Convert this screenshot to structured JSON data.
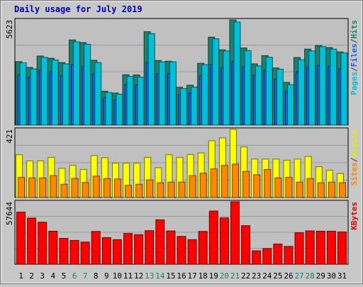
{
  "title": "Daily usage for July 2019",
  "panels": [
    {
      "max_label": "5623",
      "side_labels": [
        {
          "text": "Pages",
          "color": "#00c0d8"
        },
        {
          "text": "/",
          "color": "#404040"
        },
        {
          "text": "Files",
          "color": "#2060f0"
        },
        {
          "text": "/",
          "color": "#404040"
        },
        {
          "text": "Hits",
          "color": "#208070"
        }
      ]
    },
    {
      "max_label": "421",
      "side_labels": [
        {
          "text": "Sites",
          "color": "#ff8800"
        },
        {
          "text": "/",
          "color": "#404040"
        },
        {
          "text": "Visits",
          "color": "#e8e800"
        }
      ]
    },
    {
      "max_label": "57644",
      "side_labels": [
        {
          "text": "KBytes",
          "color": "#e00000"
        }
      ]
    }
  ],
  "weekend_days": [
    6,
    7,
    13,
    14,
    20,
    21,
    27,
    28
  ],
  "chart_data": [
    {
      "type": "bar",
      "categories": [
        "1",
        "2",
        "3",
        "4",
        "5",
        "6",
        "7",
        "8",
        "9",
        "10",
        "11",
        "12",
        "13",
        "14",
        "15",
        "16",
        "17",
        "18",
        "19",
        "20",
        "21",
        "22",
        "23",
        "24",
        "25",
        "26",
        "27",
        "28",
        "29",
        "30",
        "31"
      ],
      "ylim": [
        0,
        5623
      ],
      "series": [
        {
          "name": "Hits",
          "color": "#208070",
          "values": [
            3390,
            3080,
            3690,
            3570,
            3340,
            4550,
            4410,
            3460,
            1810,
            1710,
            2690,
            2680,
            4990,
            3450,
            3410,
            2020,
            2130,
            3300,
            4700,
            4020,
            5620,
            4120,
            3270,
            3710,
            3050,
            2280,
            3610,
            4060,
            4250,
            4140,
            3910
          ]
        },
        {
          "name": "Files",
          "color": "#2060f0",
          "values": [
            2700,
            2550,
            2950,
            2850,
            2650,
            3250,
            3150,
            2750,
            1450,
            1350,
            2150,
            2150,
            3350,
            2750,
            2750,
            1650,
            1700,
            2650,
            3250,
            3050,
            3400,
            3100,
            2650,
            2950,
            2450,
            1800,
            2850,
            3100,
            3200,
            3150,
            3000
          ]
        },
        {
          "name": "Pages",
          "color": "#00c0d8",
          "values": [
            3330,
            3000,
            3620,
            3480,
            3270,
            4450,
            4320,
            3340,
            1740,
            1650,
            2600,
            2560,
            4890,
            3380,
            3380,
            1950,
            2030,
            3230,
            4610,
            3960,
            5510,
            3980,
            3160,
            3630,
            2990,
            2160,
            3490,
            3960,
            4190,
            4060,
            3860
          ]
        }
      ]
    },
    {
      "type": "bar",
      "categories": [
        "1",
        "2",
        "3",
        "4",
        "5",
        "6",
        "7",
        "8",
        "9",
        "10",
        "11",
        "12",
        "13",
        "14",
        "15",
        "16",
        "17",
        "18",
        "19",
        "20",
        "21",
        "22",
        "23",
        "24",
        "25",
        "26",
        "27",
        "28",
        "29",
        "30",
        "31"
      ],
      "ylim": [
        0,
        421
      ],
      "series": [
        {
          "name": "Visits",
          "color": "#ffff00",
          "values": [
            264,
            226,
            226,
            248,
            180,
            198,
            173,
            259,
            246,
            212,
            212,
            212,
            248,
            184,
            264,
            248,
            266,
            275,
            350,
            368,
            421,
            312,
            237,
            237,
            237,
            230,
            237,
            253,
            190,
            168,
            148
          ]
        },
        {
          "name": "Sites",
          "color": "#ff8800",
          "values": [
            124,
            121,
            121,
            135,
            82,
            118,
            93,
            132,
            117,
            114,
            75,
            82,
            109,
            91,
            95,
            95,
            135,
            150,
            177,
            198,
            206,
            161,
            140,
            173,
            121,
            124,
            95,
            117,
            91,
            95,
            91
          ]
        }
      ]
    },
    {
      "type": "bar",
      "categories": [
        "1",
        "2",
        "3",
        "4",
        "5",
        "6",
        "7",
        "8",
        "9",
        "10",
        "11",
        "12",
        "13",
        "14",
        "15",
        "16",
        "17",
        "18",
        "19",
        "20",
        "21",
        "22",
        "23",
        "24",
        "25",
        "26",
        "27",
        "28",
        "29",
        "30",
        "31"
      ],
      "ylim": [
        0,
        57644
      ],
      "series": [
        {
          "name": "KBytes",
          "color": "#ff0000",
          "values": [
            48100,
            42600,
            38800,
            30500,
            23900,
            22000,
            20500,
            30300,
            24600,
            22700,
            28400,
            27300,
            31000,
            41000,
            30700,
            25700,
            22700,
            30300,
            49100,
            42800,
            57600,
            35600,
            12400,
            14500,
            18700,
            16500,
            29100,
            30800,
            30500,
            30500,
            29800
          ]
        }
      ]
    }
  ]
}
